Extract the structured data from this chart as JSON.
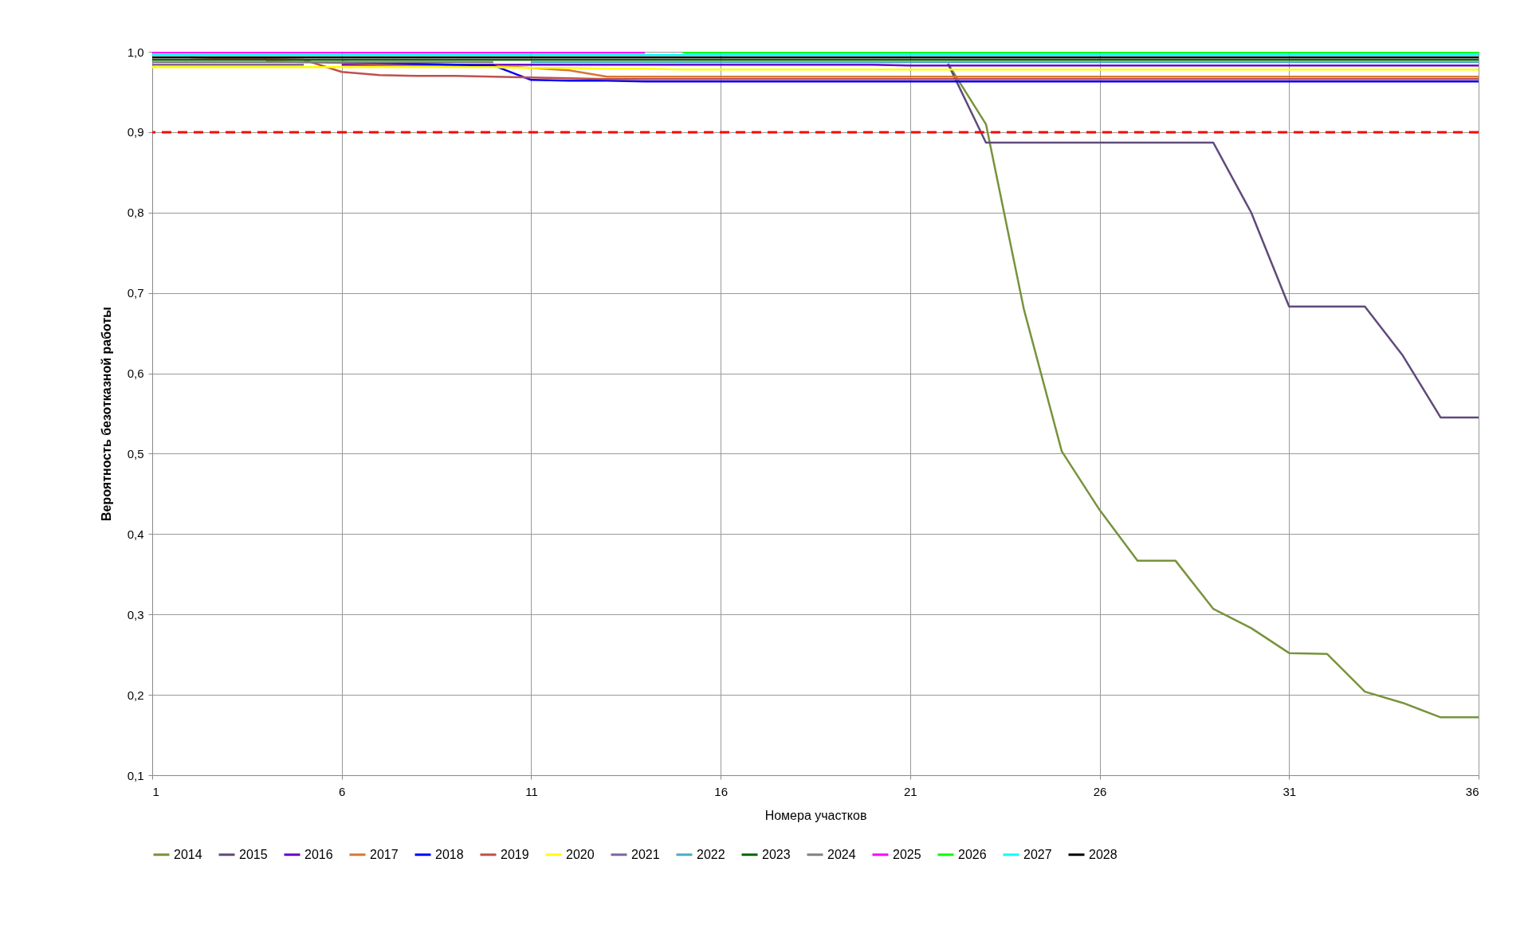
{
  "chart_data": {
    "type": "line",
    "xlabel": "Номера участков",
    "ylabel": "Вероятность безотказной работы",
    "x": [
      1,
      2,
      3,
      4,
      5,
      6,
      7,
      8,
      9,
      10,
      11,
      12,
      13,
      14,
      15,
      16,
      17,
      18,
      19,
      20,
      21,
      22,
      23,
      24,
      25,
      26,
      27,
      28,
      29,
      30,
      31,
      32,
      33,
      34,
      35,
      36
    ],
    "xlim": [
      1,
      36
    ],
    "xticks": [
      1,
      6,
      11,
      16,
      21,
      26,
      31,
      36
    ],
    "ylim": [
      0.1,
      1.0
    ],
    "yticks": [
      {
        "value": 0.1,
        "label": "0,1"
      },
      {
        "value": 0.2,
        "label": "0,2"
      },
      {
        "value": 0.3,
        "label": "0,3"
      },
      {
        "value": 0.4,
        "label": "0,4"
      },
      {
        "value": 0.5,
        "label": "0,5"
      },
      {
        "value": 0.6,
        "label": "0,6"
      },
      {
        "value": 0.7,
        "label": "0,7"
      },
      {
        "value": 0.8,
        "label": "0,8"
      },
      {
        "value": 0.9,
        "label": "0,9"
      },
      {
        "value": 1.0,
        "label": "1,0"
      }
    ],
    "grid": true,
    "legend": "bottom",
    "marker": "none",
    "line_style": "solid",
    "ref_lines": [
      {
        "axis": "y",
        "value": 0.9,
        "color": "#ff0000",
        "line_style": "dashed"
      }
    ],
    "series": [
      {
        "name": "2014",
        "color": "#77933c",
        "values": [
          null,
          null,
          null,
          null,
          null,
          null,
          null,
          null,
          null,
          null,
          null,
          null,
          null,
          null,
          null,
          null,
          null,
          null,
          null,
          null,
          null,
          0.985,
          0.91,
          0.68,
          0.503,
          0.43,
          0.367,
          0.367,
          0.307,
          0.283,
          0.252,
          0.251,
          0.204,
          0.19,
          0.172,
          0.172
        ]
      },
      {
        "name": "2015",
        "color": "#604a7b",
        "values": [
          null,
          null,
          null,
          null,
          null,
          null,
          null,
          null,
          null,
          null,
          null,
          null,
          null,
          null,
          null,
          null,
          null,
          null,
          null,
          null,
          null,
          0.985,
          0.887,
          0.887,
          0.887,
          0.887,
          0.887,
          0.887,
          0.887,
          0.8,
          0.683,
          0.683,
          0.683,
          0.622,
          0.545,
          0.545
        ]
      },
      {
        "name": "2016",
        "color": "#6a00cc",
        "values": [
          null,
          null,
          null,
          null,
          null,
          0.984,
          0.984,
          0.984,
          0.984,
          0.984,
          0.984,
          0.984,
          0.984,
          0.984,
          0.984,
          0.984,
          0.984,
          0.984,
          0.984,
          0.984,
          0.983,
          0.983,
          0.983,
          0.983,
          0.983,
          0.983,
          0.983,
          0.983,
          0.983,
          0.983,
          0.983,
          0.983,
          0.983,
          0.983,
          0.983,
          0.983
        ]
      },
      {
        "name": "2017",
        "color": "#d9772f",
        "values": [
          null,
          null,
          null,
          0.988,
          0.987,
          0.986,
          0.985,
          0.985,
          0.984,
          0.983,
          0.98,
          0.977,
          0.969,
          0.969,
          0.969,
          0.969,
          0.969,
          0.969,
          0.969,
          0.969,
          0.969,
          0.969,
          0.969,
          0.969,
          0.969,
          0.969,
          0.969,
          0.969,
          0.969,
          0.969,
          0.969,
          0.969,
          0.969,
          0.969,
          0.969,
          0.969
        ]
      },
      {
        "name": "2018",
        "color": "#0000ff",
        "values": [
          null,
          null,
          null,
          null,
          null,
          0.987,
          0.986,
          0.985,
          0.984,
          0.983,
          0.965,
          0.964,
          0.964,
          0.963,
          0.963,
          0.963,
          0.963,
          0.963,
          0.963,
          0.963,
          0.963,
          0.963,
          0.963,
          0.963,
          0.963,
          0.963,
          0.963,
          0.963,
          0.963,
          0.963,
          0.963,
          0.963,
          0.963,
          0.963,
          0.963,
          0.963
        ]
      },
      {
        "name": "2019",
        "color": "#c0504d",
        "values": [
          null,
          0.993,
          0.992,
          0.991,
          0.99,
          0.975,
          0.971,
          0.97,
          0.97,
          0.969,
          0.968,
          0.967,
          0.966,
          0.966,
          0.966,
          0.966,
          0.966,
          0.966,
          0.966,
          0.966,
          0.966,
          0.966,
          0.966,
          0.966,
          0.966,
          0.966,
          0.966,
          0.966,
          0.966,
          0.966,
          0.966,
          0.966,
          0.966,
          0.966,
          0.966,
          0.966
        ]
      },
      {
        "name": "2020",
        "color": "#ffff00",
        "values": [
          0.981,
          0.981,
          0.981,
          0.981,
          0.981,
          0.981,
          0.981,
          0.981,
          0.981,
          0.981,
          0.98,
          0.98,
          0.979,
          0.979,
          0.978,
          0.978,
          0.978,
          0.978,
          0.978,
          0.978,
          0.978,
          0.978,
          0.978,
          0.978,
          0.978,
          0.978,
          0.978,
          0.978,
          0.978,
          0.978,
          0.978,
          0.978,
          0.978,
          0.978,
          0.978,
          0.978
        ]
      },
      {
        "name": "2021",
        "color": "#8064a2",
        "values": [
          0.984,
          0.984,
          0.984,
          0.984,
          0.984,
          null,
          null,
          null,
          null,
          null,
          null,
          null,
          null,
          null,
          null,
          null,
          null,
          null,
          null,
          null,
          null,
          null,
          null,
          null,
          null,
          null,
          null,
          null,
          null,
          null,
          null,
          null,
          null,
          null,
          null,
          null
        ]
      },
      {
        "name": "2022",
        "color": "#4bacc6",
        "values": [
          null,
          null,
          null,
          null,
          null,
          null,
          null,
          null,
          null,
          null,
          0.987,
          0.987,
          0.987,
          0.987,
          0.987,
          0.987,
          0.987,
          0.987,
          0.987,
          0.987,
          0.987,
          0.987,
          0.987,
          0.987,
          0.987,
          0.987,
          0.987,
          0.987,
          0.987,
          0.987,
          0.987,
          0.987,
          0.987,
          0.987,
          0.987,
          0.987
        ]
      },
      {
        "name": "2023",
        "color": "#006400",
        "values": [
          0.99,
          0.99,
          0.99,
          0.99,
          0.99,
          0.99,
          0.99,
          0.99,
          0.99,
          0.99,
          0.99,
          0.99,
          0.99,
          0.99,
          0.99,
          0.99,
          0.99,
          0.99,
          0.99,
          0.99,
          0.99,
          0.99,
          0.99,
          0.99,
          0.99,
          0.99,
          0.99,
          0.99,
          0.99,
          0.99,
          0.99,
          0.99,
          0.99,
          0.99,
          0.99,
          0.99
        ]
      },
      {
        "name": "2024",
        "color": "#808080",
        "values": [
          0.987,
          0.987,
          0.987,
          0.987,
          0.987,
          0.987,
          0.987,
          0.987,
          0.987,
          0.987,
          null,
          null,
          null,
          null,
          null,
          null,
          null,
          null,
          null,
          null,
          null,
          null,
          null,
          null,
          null,
          null,
          null,
          null,
          null,
          null,
          null,
          null,
          null,
          null,
          null,
          null
        ]
      },
      {
        "name": "2025",
        "color": "#ff00ff",
        "values": [
          0.999,
          0.999,
          0.999,
          0.999,
          0.999,
          0.999,
          0.999,
          0.999,
          0.999,
          0.999,
          0.999,
          0.999,
          0.999,
          0.999,
          null,
          null,
          null,
          null,
          null,
          null,
          null,
          null,
          null,
          null,
          null,
          null,
          null,
          null,
          null,
          null,
          null,
          null,
          null,
          null,
          null,
          null
        ]
      },
      {
        "name": "2026",
        "color": "#00ff00",
        "values": [
          null,
          null,
          null,
          null,
          null,
          null,
          null,
          null,
          null,
          null,
          null,
          null,
          null,
          null,
          0.999,
          0.999,
          0.999,
          0.999,
          0.999,
          0.999,
          0.999,
          0.999,
          0.999,
          0.999,
          0.999,
          0.999,
          0.999,
          0.999,
          0.999,
          0.999,
          0.999,
          0.999,
          0.999,
          0.999,
          0.999,
          0.999
        ]
      },
      {
        "name": "2027",
        "color": "#00ffff",
        "values": [
          0.996,
          0.996,
          0.996,
          0.996,
          0.996,
          0.996,
          0.996,
          0.996,
          0.996,
          0.996,
          0.996,
          0.996,
          0.996,
          0.996,
          0.996,
          0.996,
          0.996,
          0.996,
          0.996,
          0.996,
          0.996,
          0.996,
          0.996,
          0.996,
          0.996,
          0.996,
          0.996,
          0.996,
          0.996,
          0.996,
          0.996,
          0.996,
          0.996,
          0.996,
          0.996,
          0.996
        ]
      },
      {
        "name": "2028",
        "color": "#000000",
        "values": [
          0.993,
          0.993,
          0.993,
          0.993,
          0.993,
          0.993,
          0.993,
          0.993,
          0.993,
          0.993,
          0.993,
          0.993,
          0.993,
          0.993,
          0.993,
          0.993,
          0.993,
          0.993,
          0.993,
          0.993,
          0.993,
          0.993,
          0.993,
          0.993,
          0.993,
          0.993,
          0.993,
          0.993,
          0.993,
          0.993,
          0.993,
          0.993,
          0.993,
          0.993,
          0.993,
          0.993
        ]
      }
    ]
  }
}
